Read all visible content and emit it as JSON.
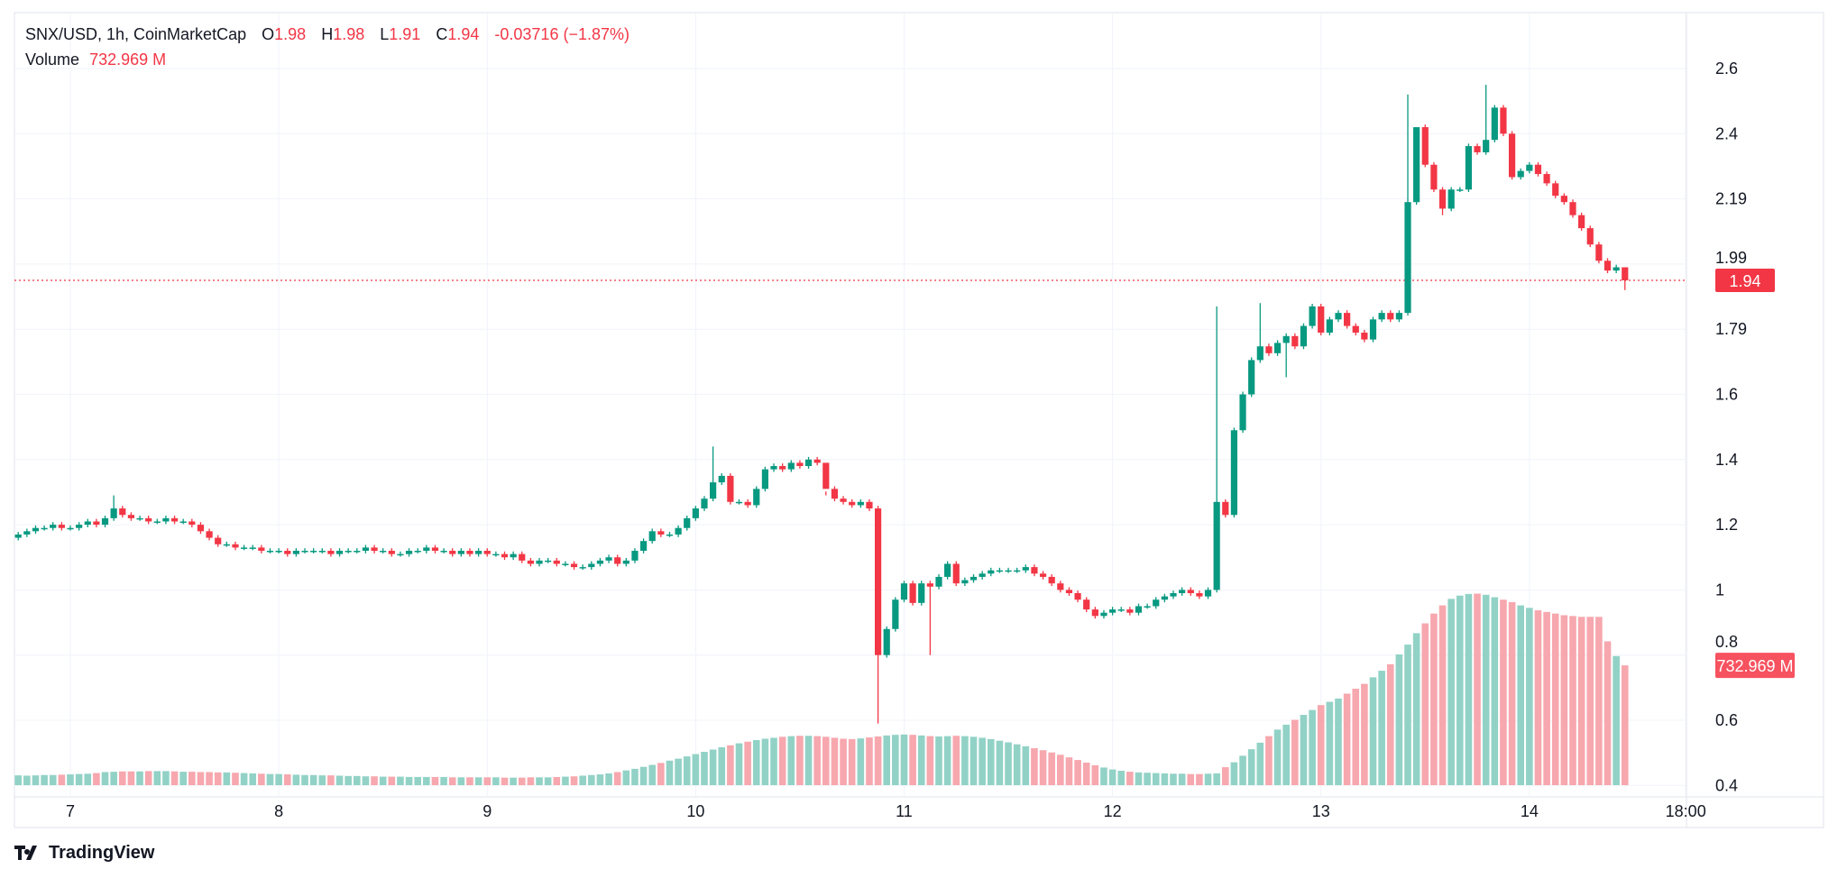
{
  "legend": {
    "symbol": "SNX/USD, 1h, CoinMarketCap",
    "o_label": "O",
    "o_value": "1.98",
    "h_label": "H",
    "h_value": "1.98",
    "l_label": "L",
    "l_value": "1.91",
    "c_label": "C",
    "c_value": "1.94",
    "change": "-0.03716 (−1.87%)",
    "volume_label": "Volume",
    "volume_value": "732.969 M"
  },
  "branding": {
    "logo_text": "TradingView"
  },
  "colors": {
    "up": "#089981",
    "down": "#f23645",
    "up_volume": "#92d2c6",
    "down_volume": "#f7a7ae",
    "grid": "#f0f3fa"
  },
  "chart_data": {
    "type": "candlestick",
    "title": "SNX/USD, 1h, CoinMarketCap",
    "interval": "1h",
    "first_hour_offset_from_day7": -6,
    "y_ticks": [
      2.6,
      2.4,
      2.19,
      1.99,
      1.79,
      1.6,
      1.4,
      1.2,
      1,
      0.8,
      0.6,
      0.4
    ],
    "y_tick_labels": [
      "2.6",
      "2.4",
      "2.19",
      "1.99",
      "1.79",
      "1.6",
      "1.4",
      "1.2",
      "1",
      "0.8",
      "0.6",
      "0.4"
    ],
    "x_ticks": [
      {
        "label": "7",
        "hour": 0
      },
      {
        "label": "8",
        "hour": 24
      },
      {
        "label": "9",
        "hour": 48
      },
      {
        "label": "10",
        "hour": 72
      },
      {
        "label": "11",
        "hour": 96
      },
      {
        "label": "12",
        "hour": 120
      },
      {
        "label": "13",
        "hour": 144
      },
      {
        "label": "14",
        "hour": 168
      },
      {
        "label": "18:00",
        "hour": 186
      }
    ],
    "first_open": 1.16,
    "closes": [
      1.17,
      1.18,
      1.19,
      1.19,
      1.2,
      1.19,
      1.19,
      1.2,
      1.21,
      1.2,
      1.22,
      1.25,
      1.23,
      1.22,
      1.22,
      1.21,
      1.21,
      1.22,
      1.21,
      1.21,
      1.2,
      1.18,
      1.16,
      1.14,
      1.14,
      1.13,
      1.13,
      1.13,
      1.12,
      1.12,
      1.12,
      1.11,
      1.12,
      1.12,
      1.12,
      1.12,
      1.11,
      1.12,
      1.12,
      1.12,
      1.13,
      1.12,
      1.12,
      1.11,
      1.11,
      1.12,
      1.12,
      1.13,
      1.12,
      1.12,
      1.11,
      1.12,
      1.11,
      1.12,
      1.11,
      1.11,
      1.1,
      1.11,
      1.09,
      1.08,
      1.09,
      1.09,
      1.08,
      1.08,
      1.07,
      1.07,
      1.08,
      1.09,
      1.1,
      1.08,
      1.09,
      1.12,
      1.15,
      1.18,
      1.17,
      1.17,
      1.19,
      1.22,
      1.25,
      1.28,
      1.33,
      1.35,
      1.27,
      1.27,
      1.26,
      1.31,
      1.37,
      1.38,
      1.37,
      1.39,
      1.38,
      1.4,
      1.39,
      1.31,
      1.28,
      1.27,
      1.26,
      1.27,
      1.25,
      0.8,
      0.88,
      0.97,
      1.02,
      0.96,
      1.02,
      1.01,
      1.04,
      1.08,
      1.02,
      1.03,
      1.04,
      1.05,
      1.06,
      1.06,
      1.06,
      1.06,
      1.07,
      1.05,
      1.04,
      1.02,
      1.0,
      0.99,
      0.97,
      0.94,
      0.92,
      0.93,
      0.94,
      0.94,
      0.93,
      0.95,
      0.95,
      0.97,
      0.98,
      0.99,
      1.0,
      0.99,
      0.98,
      1.0,
      1.27,
      1.23,
      1.49,
      1.6,
      1.7,
      1.74,
      1.72,
      1.75,
      1.77,
      1.74,
      1.8,
      1.86,
      1.78,
      1.82,
      1.84,
      1.8,
      1.78,
      1.76,
      1.82,
      1.84,
      1.82,
      1.84,
      2.18,
      2.42,
      2.3,
      2.22,
      2.16,
      2.22,
      2.22,
      2.36,
      2.34,
      2.38,
      2.48,
      2.4,
      2.26,
      2.28,
      2.3,
      2.27,
      2.24,
      2.2,
      2.18,
      2.14,
      2.1,
      2.05,
      2.0,
      1.97,
      1.98,
      1.94
    ],
    "high_overrides": {
      "11": 1.29,
      "80": 1.44,
      "93": 1.29,
      "138": 1.86,
      "143": 1.87,
      "160": 2.52,
      "161": 2.28,
      "169": 2.55,
      "185": 1.98
    },
    "low_overrides": {
      "99": 0.59,
      "105": 0.8,
      "146": 1.65,
      "164": 2.14,
      "185": 1.91
    },
    "volume_unit": "M",
    "volume_max": 1175,
    "volumes": [
      60,
      58,
      60,
      62,
      62,
      64,
      66,
      68,
      70,
      74,
      80,
      82,
      84,
      84,
      84,
      86,
      86,
      86,
      84,
      82,
      82,
      80,
      80,
      78,
      78,
      76,
      74,
      72,
      70,
      68,
      68,
      66,
      64,
      62,
      62,
      60,
      60,
      58,
      56,
      56,
      54,
      54,
      52,
      52,
      52,
      50,
      50,
      50,
      50,
      50,
      48,
      48,
      48,
      48,
      48,
      48,
      46,
      46,
      46,
      48,
      48,
      48,
      50,
      52,
      54,
      58,
      62,
      66,
      72,
      80,
      90,
      100,
      112,
      124,
      136,
      150,
      162,
      176,
      190,
      204,
      218,
      232,
      244,
      256,
      266,
      276,
      284,
      290,
      296,
      300,
      302,
      302,
      300,
      296,
      290,
      284,
      282,
      286,
      292,
      298,
      304,
      308,
      310,
      308,
      304,
      300,
      298,
      300,
      302,
      300,
      296,
      290,
      282,
      272,
      262,
      250,
      238,
      226,
      214,
      200,
      186,
      170,
      154,
      138,
      122,
      108,
      96,
      88,
      82,
      78,
      76,
      74,
      72,
      70,
      70,
      68,
      68,
      70,
      72,
      110,
      140,
      180,
      220,
      260,
      300,
      340,
      370,
      400,
      430,
      460,
      490,
      510,
      530,
      560,
      590,
      620,
      660,
      700,
      740,
      800,
      860,
      930,
      990,
      1050,
      1100,
      1140,
      1160,
      1170,
      1172,
      1165,
      1150,
      1135,
      1120,
      1100,
      1085,
      1070,
      1060,
      1050,
      1040,
      1035,
      1030,
      1030,
      1030,
      880,
      790,
      733
    ],
    "last_price_label": "1.94",
    "last_volume_label": "732.969 M"
  }
}
